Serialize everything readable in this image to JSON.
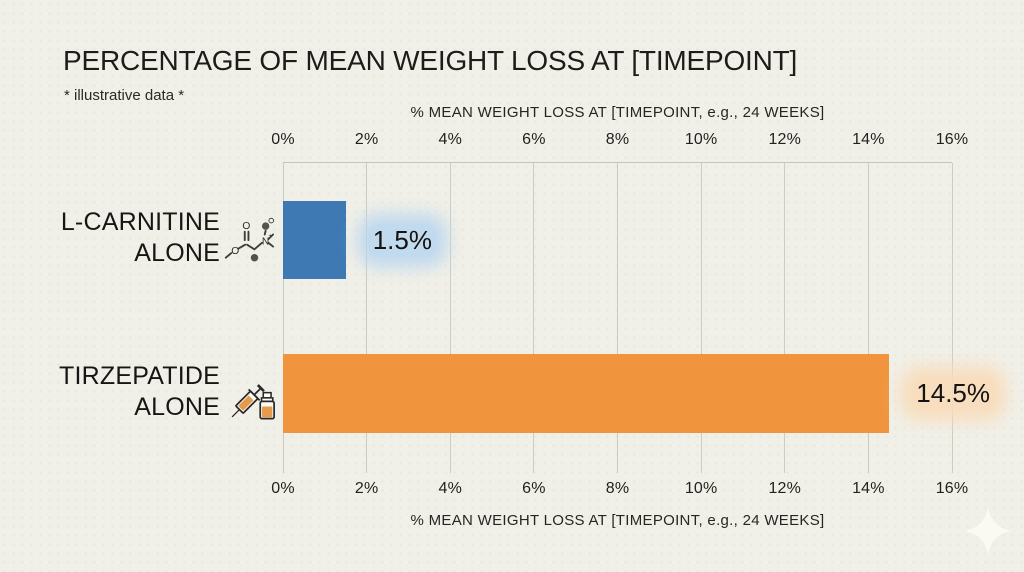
{
  "slide": {
    "title": "PERCENTAGE OF MEAN WEIGHT LOSS AT [TIMEPOINT]",
    "subtitle": "* illustrative data *"
  },
  "axis": {
    "top_label": "% MEAN WEIGHT LOSS AT [TIMEPOINT, e.g., 24 WEEKS]",
    "bottom_label": "% MEAN WEIGHT LOSS AT [TIMEPOINT, e.g., 24 WEEKS]"
  },
  "categories": [
    {
      "line1": "L-CARNITINE",
      "line2": "ALONE",
      "icon": "molecule-icon"
    },
    {
      "line1": "TIRZEPATIDE",
      "line2": "ALONE",
      "icon": "syringe-vial-icon"
    }
  ],
  "colors": {
    "background": "#f1f0e8",
    "text": "#201f1d",
    "gridline": "#cdccc3",
    "bar_blue": "#3e79b4",
    "bar_orange": "#f0953e",
    "halo_blue": "#bad6ee",
    "halo_orange": "#f8dbb9"
  },
  "chart_data": {
    "type": "bar",
    "orientation": "horizontal",
    "title": "PERCENTAGE OF MEAN WEIGHT LOSS AT [TIMEPOINT]",
    "categories": [
      "L-CARNITINE ALONE",
      "TIRZEPATIDE ALONE"
    ],
    "values": [
      1.5,
      14.5
    ],
    "value_labels": [
      "1.5%",
      "14.5%"
    ],
    "xlabel": "% MEAN WEIGHT LOSS AT [TIMEPOINT, e.g., 24 WEEKS]",
    "xlim": [
      0,
      16
    ],
    "x_tick_labels": [
      "0%",
      "2%",
      "4%",
      "6%",
      "8%",
      "10%",
      "12%",
      "14%",
      "16%"
    ],
    "grid": true,
    "legend": false,
    "bar_colors": [
      "#3e79b4",
      "#f0953e"
    ]
  }
}
